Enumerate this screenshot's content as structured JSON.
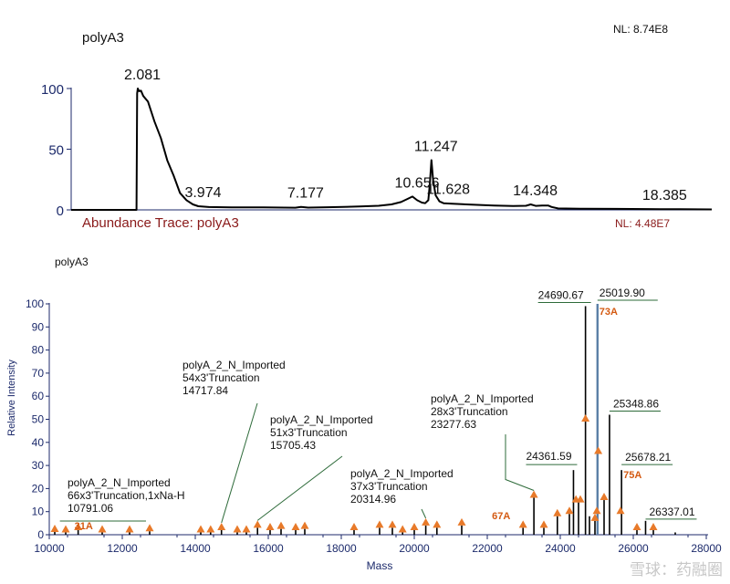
{
  "watermark": "雪球：药融圈",
  "chart_data": [
    {
      "type": "line",
      "title": "polyA3",
      "nl_top": "NL: 8.74E8",
      "trace_label": "Abundance Trace: polyA3",
      "nl_bottom": "NL: 4.48E7",
      "xlim": [
        0,
        20
      ],
      "ylim": [
        0,
        100
      ],
      "y_ticks": [
        "100",
        "50",
        "0"
      ],
      "y_tick_values": [
        100,
        50,
        0
      ],
      "series": [
        {
          "name": "chromatogram",
          "x": [
            0,
            2.04,
            2.06,
            2.08,
            2.12,
            2.18,
            2.25,
            2.4,
            2.6,
            2.8,
            3.0,
            3.2,
            3.4,
            3.6,
            3.8,
            3.97,
            4.3,
            5,
            6,
            7,
            7.177,
            7.4,
            8,
            9,
            9.6,
            10.0,
            10.3,
            10.5,
            10.656,
            10.8,
            10.95,
            11.05,
            11.15,
            11.2,
            11.247,
            11.3,
            11.38,
            11.5,
            11.628,
            11.9,
            12.5,
            13.2,
            13.8,
            14.2,
            14.348,
            14.5,
            14.7,
            14.9,
            15.0,
            15.2,
            16,
            17,
            18,
            18.385,
            19,
            20
          ],
          "y": [
            0,
            0,
            96,
            100,
            99,
            97,
            95,
            88,
            74,
            58,
            42,
            27,
            15,
            8,
            4.5,
            3,
            2.3,
            2.1,
            2.0,
            1.8,
            2.5,
            1.9,
            2.2,
            2.8,
            3.4,
            4.5,
            6.5,
            9,
            11,
            8,
            6,
            5.5,
            8,
            22,
            41,
            25,
            12,
            7,
            5.5,
            5,
            4.3,
            3.6,
            3.2,
            3.4,
            4.5,
            3.3,
            3.6,
            3.5,
            2.4,
            1.2,
            0.9,
            0.8,
            0.7,
            0.6,
            0.5,
            0.4
          ]
        }
      ],
      "peak_labels": [
        {
          "label": "2.081",
          "x": 2.081,
          "y": 100
        },
        {
          "label": "3.974",
          "x": 3.974,
          "y": 3
        },
        {
          "label": "7.177",
          "x": 7.177,
          "y": 2.5
        },
        {
          "label": "10.656",
          "x": 10.656,
          "y": 11
        },
        {
          "label": "11.247",
          "x": 11.247,
          "y": 41
        },
        {
          "label": "11.628",
          "x": 11.628,
          "y": 5.5
        },
        {
          "label": "14.348",
          "x": 14.348,
          "y": 4.5
        },
        {
          "label": "18.385",
          "x": 18.385,
          "y": 0.6
        }
      ]
    },
    {
      "type": "bar",
      "title": "polyA3",
      "xlabel": "Mass",
      "ylabel": "Relative Intensity",
      "xlim": [
        10000,
        28000
      ],
      "ylim": [
        0,
        100
      ],
      "x_ticks": [
        "10000",
        "12000",
        "14000",
        "16000",
        "18000",
        "20000",
        "22000",
        "24000",
        "26000",
        "28000"
      ],
      "x_tick_values": [
        10000,
        12000,
        14000,
        16000,
        18000,
        20000,
        22000,
        24000,
        26000,
        28000
      ],
      "y_ticks": [
        "0",
        "10",
        "20",
        "30",
        "40",
        "50",
        "60",
        "70",
        "80",
        "90",
        "100"
      ],
      "y_tick_values": [
        0,
        10,
        20,
        30,
        40,
        50,
        60,
        70,
        80,
        90,
        100
      ],
      "peaks": [
        {
          "mass": 10150,
          "intensity": 1.2
        },
        {
          "mass": 10450,
          "intensity": 1.0
        },
        {
          "mass": 10791.06,
          "intensity": 2.0
        },
        {
          "mass": 11450,
          "intensity": 1.0
        },
        {
          "mass": 12200,
          "intensity": 1.0
        },
        {
          "mass": 12750,
          "intensity": 1.5
        },
        {
          "mass": 14150,
          "intensity": 1.0
        },
        {
          "mass": 14420,
          "intensity": 1.0
        },
        {
          "mass": 14717.84,
          "intensity": 2.0
        },
        {
          "mass": 15150,
          "intensity": 1.0
        },
        {
          "mass": 15400,
          "intensity": 1.0
        },
        {
          "mass": 15705.43,
          "intensity": 3.0
        },
        {
          "mass": 16050,
          "intensity": 2.0
        },
        {
          "mass": 16350,
          "intensity": 2.5
        },
        {
          "mass": 16750,
          "intensity": 2.0
        },
        {
          "mass": 17000,
          "intensity": 2.5
        },
        {
          "mass": 18350,
          "intensity": 2.0
        },
        {
          "mass": 19050,
          "intensity": 3.0
        },
        {
          "mass": 19400,
          "intensity": 3.0
        },
        {
          "mass": 19680,
          "intensity": 1.0
        },
        {
          "mass": 20000,
          "intensity": 2.0
        },
        {
          "mass": 20314.96,
          "intensity": 4.0
        },
        {
          "mass": 20620,
          "intensity": 3.0
        },
        {
          "mass": 21300,
          "intensity": 4.0
        },
        {
          "mass": 22980,
          "intensity": 3.0
        },
        {
          "mass": 23277.63,
          "intensity": 16.0
        },
        {
          "mass": 23550,
          "intensity": 3.0
        },
        {
          "mass": 23920,
          "intensity": 8.0
        },
        {
          "mass": 24250,
          "intensity": 9.0
        },
        {
          "mass": 24361.59,
          "intensity": 28.0
        },
        {
          "mass": 24500,
          "intensity": 14.0
        },
        {
          "mass": 24690.67,
          "intensity": 99.0
        },
        {
          "mass": 24800,
          "intensity": 8.0
        },
        {
          "mass": 24950,
          "intensity": 6.0
        },
        {
          "mass": 25019.9,
          "intensity": 100.0
        },
        {
          "mass": 25200,
          "intensity": 15.0
        },
        {
          "mass": 25348.86,
          "intensity": 52.0
        },
        {
          "mass": 25678.21,
          "intensity": 28.0
        },
        {
          "mass": 26100,
          "intensity": 2.0
        },
        {
          "mass": 26337.01,
          "intensity": 6.0
        },
        {
          "mass": 26550,
          "intensity": 2.0
        },
        {
          "mass": 27150,
          "intensity": 1.0
        }
      ],
      "markers": [
        {
          "mass": 10150,
          "intensity": 1.2
        },
        {
          "mass": 10450,
          "intensity": 1.0
        },
        {
          "mass": 10791.06,
          "intensity": 2.0
        },
        {
          "mass": 11450,
          "intensity": 1.0
        },
        {
          "mass": 12200,
          "intensity": 1.0
        },
        {
          "mass": 12750,
          "intensity": 1.5
        },
        {
          "mass": 14150,
          "intensity": 1.0
        },
        {
          "mass": 14420,
          "intensity": 1.0
        },
        {
          "mass": 14717.84,
          "intensity": 2.0
        },
        {
          "mass": 15150,
          "intensity": 1.0
        },
        {
          "mass": 15400,
          "intensity": 1.0
        },
        {
          "mass": 15705.43,
          "intensity": 3.0
        },
        {
          "mass": 16050,
          "intensity": 2.0
        },
        {
          "mass": 16350,
          "intensity": 2.5
        },
        {
          "mass": 16750,
          "intensity": 2.0
        },
        {
          "mass": 17000,
          "intensity": 2.5
        },
        {
          "mass": 18350,
          "intensity": 2.0
        },
        {
          "mass": 19050,
          "intensity": 3.0
        },
        {
          "mass": 19400,
          "intensity": 3.0
        },
        {
          "mass": 19680,
          "intensity": 1.0
        },
        {
          "mass": 20000,
          "intensity": 2.0
        },
        {
          "mass": 20314.96,
          "intensity": 4.0
        },
        {
          "mass": 20620,
          "intensity": 3.0
        },
        {
          "mass": 21300,
          "intensity": 4.0
        },
        {
          "mass": 22980,
          "intensity": 3.0
        },
        {
          "mass": 23277.63,
          "intensity": 16.0
        },
        {
          "mass": 23550,
          "intensity": 3.0
        },
        {
          "mass": 23920,
          "intensity": 8.0
        },
        {
          "mass": 24250,
          "intensity": 9.0
        },
        {
          "mass": 24430,
          "intensity": 14.0
        },
        {
          "mass": 24550,
          "intensity": 14.0
        },
        {
          "mass": 24690.67,
          "intensity": 49.0
        },
        {
          "mass": 24950,
          "intensity": 6.0
        },
        {
          "mass": 25000,
          "intensity": 9.0
        },
        {
          "mass": 25040,
          "intensity": 35.0
        },
        {
          "mass": 25200,
          "intensity": 15.0
        },
        {
          "mass": 25650,
          "intensity": 9.0
        },
        {
          "mass": 26100,
          "intensity": 2.0
        },
        {
          "mass": 26550,
          "intensity": 2.0
        }
      ],
      "mass_labels": [
        {
          "label": "24690.67",
          "mass": 24690.67,
          "intensity": 99
        },
        {
          "label": "25019.90",
          "mass": 25019.9,
          "intensity": 100
        },
        {
          "label": "25348.86",
          "mass": 25348.86,
          "intensity": 52
        },
        {
          "label": "24361.59",
          "mass": 24361.59,
          "intensity": 28
        },
        {
          "label": "25678.21",
          "mass": 25678.21,
          "intensity": 28
        },
        {
          "label": "26337.01",
          "mass": 26337.01,
          "intensity": 6
        }
      ],
      "peak_tags": [
        {
          "label": "73A",
          "mass": 25019.9
        },
        {
          "label": "75A",
          "mass": 25678.21
        },
        {
          "label": "67A",
          "mass": 23277.63
        },
        {
          "label": "31A",
          "mass": 10791.06
        }
      ],
      "annotations": [
        {
          "mass": 10791.06,
          "lines": [
            "polyA_2_N_Imported",
            "66x3'Truncation,1xNa-H",
            "10791.06"
          ]
        },
        {
          "mass": 14717.84,
          "lines": [
            "polyA_2_N_Imported",
            "54x3'Truncation",
            "14717.84"
          ]
        },
        {
          "mass": 15705.43,
          "lines": [
            "polyA_2_N_Imported",
            "51x3'Truncation",
            "15705.43"
          ]
        },
        {
          "mass": 20314.96,
          "lines": [
            "polyA_2_N_Imported",
            "37x3'Truncation",
            "20314.96"
          ]
        },
        {
          "mass": 23277.63,
          "lines": [
            "polyA_2_N_Imported",
            "28x3'Truncation",
            "23277.63"
          ]
        }
      ]
    }
  ]
}
